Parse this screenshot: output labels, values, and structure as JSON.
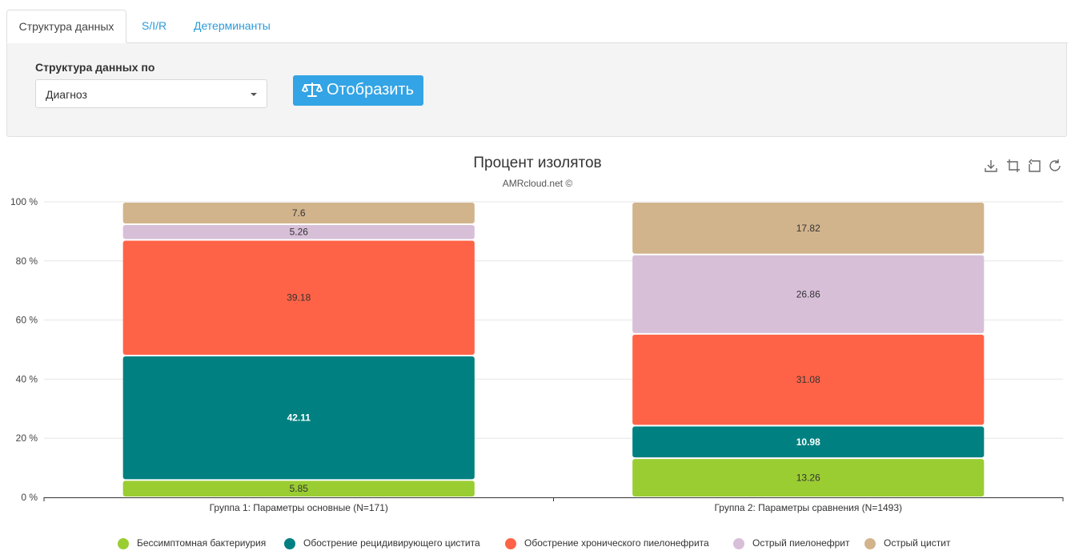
{
  "tabs": [
    {
      "label": "Структура данных",
      "active": true
    },
    {
      "label": "S/I/R",
      "active": false
    },
    {
      "label": "Детерминанты",
      "active": false
    }
  ],
  "filter": {
    "label": "Структура данных по",
    "select_value": "Диагноз",
    "button_label": "Отобразить",
    "button_icon": "balance-scale-icon"
  },
  "toolbox": [
    "download-icon",
    "zoom-icon",
    "zoom-reset-icon",
    "refresh-icon"
  ],
  "colors": {
    "accent": "#33a4e5",
    "series": [
      "#9acd32",
      "#008080",
      "#ff6347",
      "#d8bfd8",
      "#d2b48c"
    ]
  },
  "chart_data": {
    "type": "bar",
    "stacked": true,
    "title": "Процент изолятов",
    "subtitle": "AMRcloud.net ©",
    "categories": [
      "Группа 1: Параметры основные (N=171)",
      "Группа 2: Параметры сравнения (N=1493)"
    ],
    "series": [
      {
        "name": "Бессимптомная бактериурия",
        "values": [
          5.85,
          13.26
        ],
        "label_color": "#333333"
      },
      {
        "name": "Обострение рецидивирующего цистита",
        "values": [
          42.11,
          10.98
        ],
        "label_color": "#ffffff"
      },
      {
        "name": "Обострение хронического пиелонефрита",
        "values": [
          39.18,
          31.08
        ],
        "label_color": "#333333"
      },
      {
        "name": "Острый пиелонефрит",
        "values": [
          5.26,
          26.86
        ],
        "label_color": "#333333"
      },
      {
        "name": "Острый цистит",
        "values": [
          7.6,
          17.82
        ],
        "label_color": "#333333"
      }
    ],
    "y_ticks": [
      "0 %",
      "20 %",
      "40 %",
      "60 %",
      "80 %",
      "100 %"
    ],
    "ylim": [
      0,
      100
    ],
    "grid": true,
    "legend_position": "bottom"
  }
}
